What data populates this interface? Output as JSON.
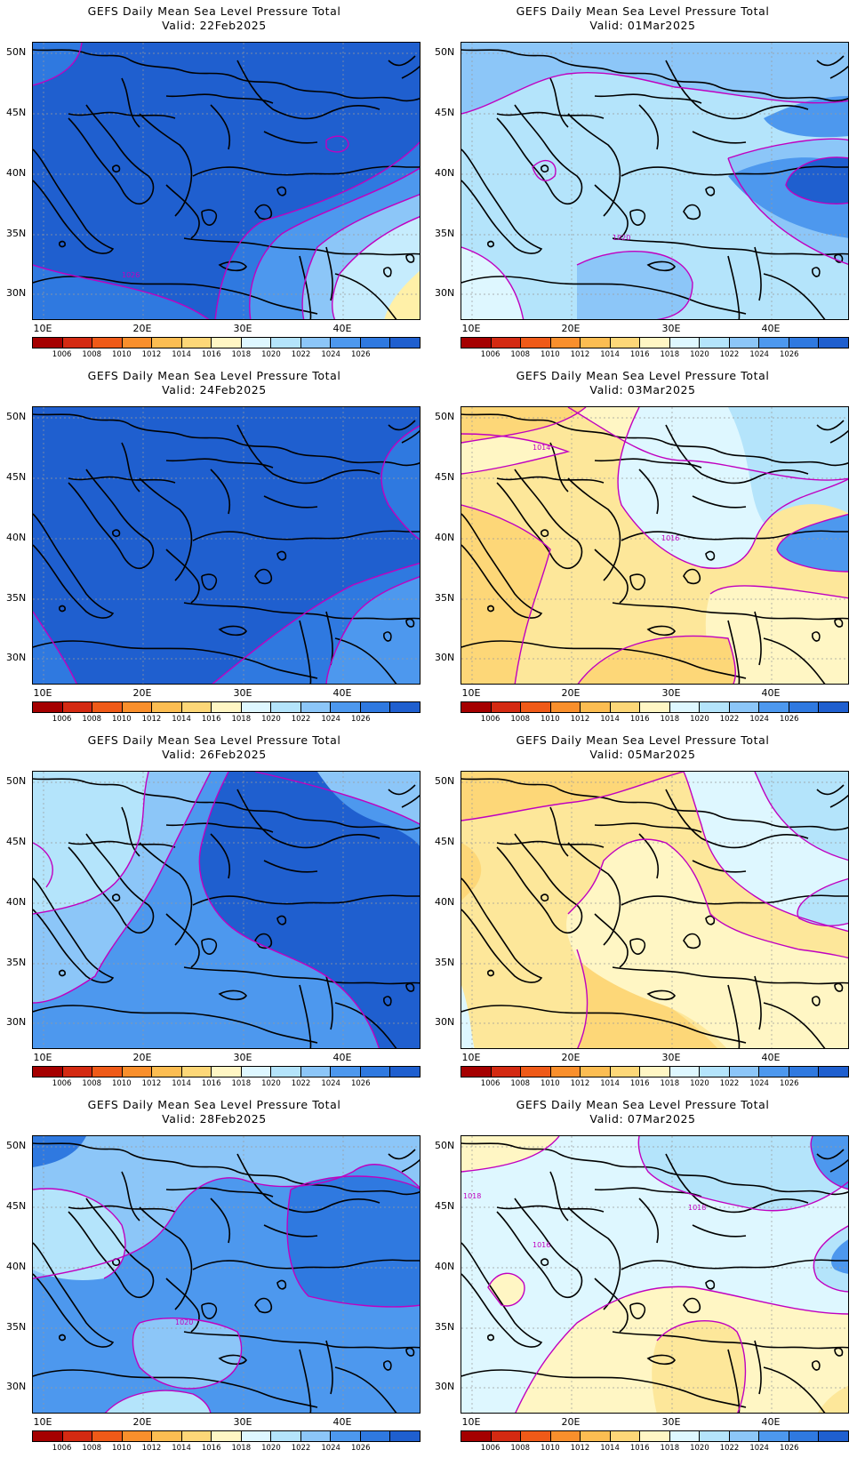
{
  "panel_title": "GEFS Daily Mean Sea Level Pressure Total",
  "panels": [
    {
      "valid": "Valid: 22Feb2025",
      "base": "#1f5fcf",
      "contour_labels": [
        {
          "text": "1026"
        }
      ],
      "patches": [
        {
          "color": "#2f79e0",
          "shape": "s1"
        },
        {
          "color": "#4d98ee",
          "shape": "s2"
        },
        {
          "color": "#8cc6f8",
          "shape": "s3"
        },
        {
          "color": "#c6ecfd",
          "shape": "s4"
        },
        {
          "color": "#fff0a8",
          "shape": "s5"
        }
      ]
    },
    {
      "valid": "Valid: 01Mar2025",
      "base": "#b4e4fb",
      "contour_labels": [
        {
          "text": "1020"
        }
      ],
      "patches": [
        {
          "color": "#8cc6f8",
          "shape": "s6"
        },
        {
          "color": "#4d98ee",
          "shape": "s7"
        },
        {
          "color": "#1f5fcf",
          "shape": "s8"
        },
        {
          "color": "#def7ff",
          "shape": "s9"
        }
      ]
    },
    {
      "valid": "Valid: 24Feb2025",
      "base": "#1f5fcf",
      "contour_labels": [],
      "patches": [
        {
          "color": "#2f79e0",
          "shape": "s10"
        },
        {
          "color": "#4d98ee",
          "shape": "s11"
        }
      ]
    },
    {
      "valid": "Valid: 03Mar2025",
      "base": "#fde79a",
      "contour_labels": [
        {
          "text": "1014"
        },
        {
          "text": "1016"
        }
      ],
      "patches": [
        {
          "color": "#fff6c4",
          "shape": "s12"
        },
        {
          "color": "#def7ff",
          "shape": "s13"
        },
        {
          "color": "#b4e4fb",
          "shape": "s14"
        },
        {
          "color": "#4d98ee",
          "shape": "s15"
        },
        {
          "color": "#fdd778",
          "shape": "s16"
        }
      ]
    },
    {
      "valid": "Valid: 26Feb2025",
      "base": "#4d98ee",
      "contour_labels": [],
      "patches": [
        {
          "color": "#b4e4fb",
          "shape": "s17"
        },
        {
          "color": "#8cc6f8",
          "shape": "s18"
        },
        {
          "color": "#1f5fcf",
          "shape": "s19"
        }
      ]
    },
    {
      "valid": "Valid: 05Mar2025",
      "base": "#fde79a",
      "contour_labels": [],
      "patches": [
        {
          "color": "#fdd778",
          "shape": "s20"
        },
        {
          "color": "#fff6c4",
          "shape": "s21"
        },
        {
          "color": "#def7ff",
          "shape": "s22"
        },
        {
          "color": "#b4e4fb",
          "shape": "s23"
        }
      ]
    },
    {
      "valid": "Valid: 28Feb2025",
      "base": "#4d98ee",
      "contour_labels": [
        {
          "text": "1020"
        }
      ],
      "patches": [
        {
          "color": "#8cc6f8",
          "shape": "s24"
        },
        {
          "color": "#b4e4fb",
          "shape": "s25"
        },
        {
          "color": "#2f79e0",
          "shape": "s26"
        }
      ]
    },
    {
      "valid": "Valid: 07Mar2025",
      "base": "#def7ff",
      "contour_labels": [
        {
          "text": "1018"
        },
        {
          "text": "1018"
        },
        {
          "text": "1016"
        }
      ],
      "patches": [
        {
          "color": "#fff6c4",
          "shape": "s27"
        },
        {
          "color": "#fde79a",
          "shape": "s28"
        },
        {
          "color": "#b4e4fb",
          "shape": "s29"
        },
        {
          "color": "#4d98ee",
          "shape": "s30"
        }
      ]
    }
  ],
  "lat_labels": [
    "50N",
    "45N",
    "40N",
    "35N",
    "30N"
  ],
  "lon_labels": [
    "10E",
    "20E",
    "30E",
    "40E"
  ],
  "colorbar": {
    "colors": [
      "#a50000",
      "#d42a12",
      "#ef5a18",
      "#f98f2c",
      "#fcbd52",
      "#fdd778",
      "#fff6c4",
      "#def7ff",
      "#b4e4fb",
      "#8cc6f8",
      "#4d98ee",
      "#2f79e0",
      "#1f5fcf"
    ],
    "labels": [
      "1006",
      "1008",
      "1010",
      "1012",
      "1014",
      "1016",
      "1018",
      "1020",
      "1022",
      "1024",
      "1026"
    ]
  },
  "contour_color": "#c000c0",
  "coast_color": "#000000"
}
